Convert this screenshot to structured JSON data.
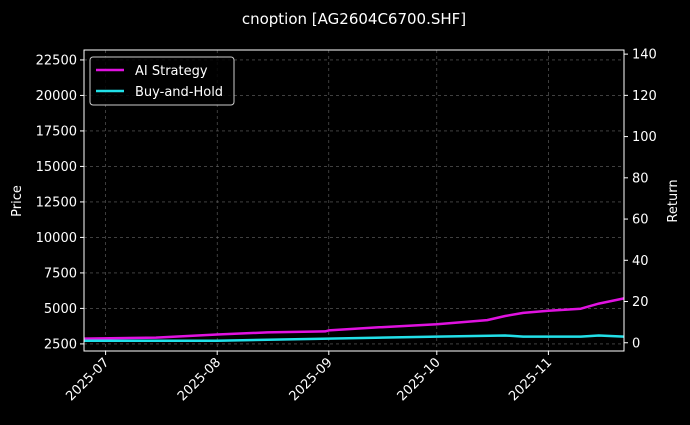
{
  "chart_data": {
    "type": "line",
    "title": "cnoption [AG2604C6700.SHF]",
    "xlabel": "",
    "ylabel_left": "Price",
    "ylabel_right": "Return",
    "xlim": [
      "2025-06-25",
      "2025-11-22"
    ],
    "ylim_left": [
      2000,
      23200
    ],
    "ylim_right": [
      -4,
      142
    ],
    "x_ticks": [
      "2025-07",
      "2025-08",
      "2025-09",
      "2025-10",
      "2025-11"
    ],
    "x_tick_dates": [
      "2025-07-01",
      "2025-08-01",
      "2025-09-01",
      "2025-10-01",
      "2025-11-01"
    ],
    "y_ticks_left": [
      2500,
      5000,
      7500,
      10000,
      12500,
      15000,
      17500,
      20000,
      22500
    ],
    "y_ticks_right": [
      0,
      20,
      40,
      60,
      80,
      100,
      120,
      140
    ],
    "grid": true,
    "legend_position": "top-left",
    "series": [
      {
        "name": "AI Strategy",
        "axis": "right",
        "color": "#e012e0",
        "x": [
          "2025-06-25",
          "2025-07-15",
          "2025-08-01",
          "2025-08-15",
          "2025-08-31",
          "2025-09-01",
          "2025-09-15",
          "2025-10-01",
          "2025-10-15",
          "2025-10-20",
          "2025-10-25",
          "2025-11-01",
          "2025-11-10",
          "2025-11-15",
          "2025-11-22"
        ],
        "values": [
          2,
          2.5,
          4,
          5,
          5.5,
          6,
          7.5,
          9,
          11,
          13,
          14.5,
          15.5,
          16.5,
          19,
          21.5
        ]
      },
      {
        "name": "Buy-and-Hold",
        "axis": "right",
        "color": "#22e0e8",
        "x": [
          "2025-06-25",
          "2025-08-01",
          "2025-09-01",
          "2025-10-01",
          "2025-10-20",
          "2025-10-25",
          "2025-11-01",
          "2025-11-10",
          "2025-11-15",
          "2025-11-22"
        ],
        "values": [
          1,
          1,
          2,
          3,
          3.5,
          3,
          3,
          3,
          3.5,
          3
        ]
      }
    ]
  }
}
